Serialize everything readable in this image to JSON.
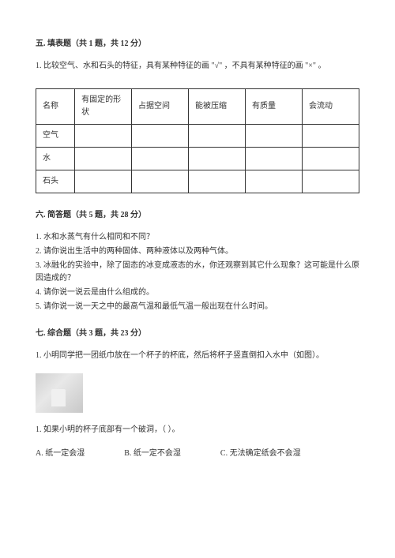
{
  "section5": {
    "title": "五. 填表题（共 1 题，共 12 分）",
    "question": "1. 比较空气、水和石头的特征，具有某种特征的画 \"√\" ，不具有某种特征的画 \"×\" 。",
    "table": {
      "headers": [
        "名称",
        "有固定的形状",
        "占据空间",
        "能被压缩",
        "有质量",
        "会流动"
      ],
      "rows": [
        "空气",
        "水",
        "石头"
      ]
    }
  },
  "section6": {
    "title": "六. 简答题（共 5 题，共 28 分）",
    "questions": [
      "1. 水和水蒸气有什么相同和不同？",
      "2. 请你说出生活中的两种固体、两种液体以及两种气体。",
      "3. 冰融化的实验中，除了固态的冰变成液态的水，你还观察到其它什么现象？这可能是什么原因造成的？",
      "4. 请你说一说云是由什么组成的。",
      "5. 请你说一说一天之中的最高气温和最低气温一般出现在什么时间。"
    ]
  },
  "section7": {
    "title": "七. 综合题（共 3 题，共 23 分）",
    "question1": "1. 小明同学把一团纸巾放在一个杯子的杯底，然后将杯子竖直倒扣入水中（如图）。",
    "subquestion": "1. 如果小明的杯子底部有一个破洞，（        ）。",
    "options": {
      "a": "A. 纸一定会湿",
      "b": "B. 纸一定不会湿",
      "c": "C. 无法确定纸会不会湿"
    }
  },
  "colors": {
    "text": "#333333",
    "background": "#ffffff",
    "border": "#333333"
  }
}
